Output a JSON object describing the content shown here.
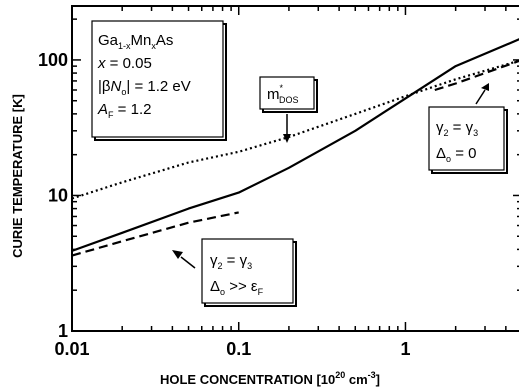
{
  "chart_data": {
    "type": "line",
    "x_scale": "log",
    "y_scale": "log",
    "xlim": [
      0.01,
      5
    ],
    "ylim": [
      1,
      250
    ],
    "xlabel": {
      "main": "HOLE CONCENTRATION [10",
      "sup1": "20",
      "mid": " cm",
      "sup2": "-3",
      "end": "]"
    },
    "ylabel": "CURIE TEMPERATURE  [K]",
    "x_ticks": [
      {
        "value": 0.01,
        "label": "0.01"
      },
      {
        "value": 0.1,
        "label": "0.1"
      },
      {
        "value": 1,
        "label": "1"
      }
    ],
    "y_ticks": [
      {
        "value": 1,
        "label": "1"
      },
      {
        "value": 10,
        "label": "10"
      },
      {
        "value": 100,
        "label": "100"
      }
    ],
    "grid": false,
    "series": [
      {
        "style": "solid",
        "x": [
          0.01,
          0.02,
          0.05,
          0.1,
          0.2,
          0.5,
          1,
          2,
          5
        ],
        "y": [
          3.9,
          5.3,
          8.0,
          10.5,
          16,
          30,
          52,
          90,
          145
        ]
      },
      {
        "style": "dotted",
        "x": [
          0.01,
          0.02,
          0.05,
          0.1,
          0.2,
          0.5,
          1,
          2,
          5
        ],
        "y": [
          9.5,
          12.5,
          17.5,
          21,
          27,
          40,
          54,
          72,
          100
        ]
      },
      {
        "style": "dashed",
        "x": [
          0.01,
          0.02,
          0.05,
          0.1
        ],
        "y": [
          3.6,
          4.6,
          6.3,
          7.5
        ]
      },
      {
        "style": "dashed",
        "x": [
          1.5,
          2,
          3,
          5
        ],
        "y": [
          60,
          67,
          80,
          100
        ]
      }
    ],
    "annotations": {
      "params": {
        "formula": {
          "a": "Ga",
          "s1": "1-x",
          "b": "Mn",
          "s2": "x",
          "c": "As"
        },
        "x_line": {
          "var": "x",
          "rest": " = 0.05"
        },
        "beta_line": {
          "pre": "|β",
          "var": "N",
          "sub": "o",
          "rest": "| = 1.2 eV"
        },
        "af_line": {
          "var": "A",
          "sub": "F",
          "rest": " = 1.2"
        }
      },
      "mdos": {
        "base": "m",
        "sup": "*",
        "sub": "DOS"
      },
      "box_right": {
        "line1": {
          "a": "γ",
          "s1": "2",
          "b": " = γ",
          "s2": "3"
        },
        "line2": {
          "a": "Δ",
          "s1": "o",
          "b": " = 0"
        }
      },
      "box_lower": {
        "line1": {
          "a": "γ",
          "s1": "2",
          "b": " = γ",
          "s2": "3"
        },
        "line2": {
          "a": "Δ",
          "s1": "o",
          "b": " >> ε",
          "s2": "F"
        }
      }
    }
  }
}
